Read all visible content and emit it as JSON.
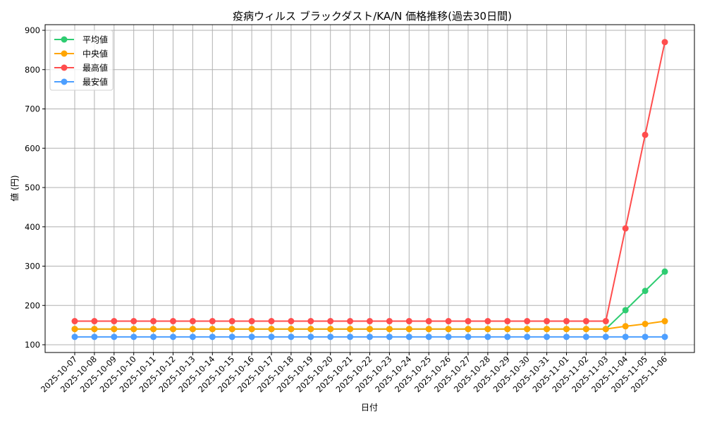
{
  "chart_data": {
    "type": "line",
    "title": "疫病ウィルス ブラックダスト/KA/N 価格推移(過去30日間)",
    "xlabel": "日付",
    "ylabel": "値 (円)",
    "ylim": [
      80,
      905
    ],
    "yticks": [
      100,
      200,
      300,
      400,
      500,
      600,
      700,
      800,
      900
    ],
    "grid": true,
    "legend_position": "upper left",
    "x": [
      "2025-10-07",
      "2025-10-08",
      "2025-10-09",
      "2025-10-10",
      "2025-10-11",
      "2025-10-12",
      "2025-10-13",
      "2025-10-14",
      "2025-10-15",
      "2025-10-16",
      "2025-10-17",
      "2025-10-18",
      "2025-10-19",
      "2025-10-20",
      "2025-10-21",
      "2025-10-22",
      "2025-10-23",
      "2025-10-24",
      "2025-10-25",
      "2025-10-26",
      "2025-10-27",
      "2025-10-28",
      "2025-10-29",
      "2025-10-30",
      "2025-10-31",
      "2025-11-01",
      "2025-11-02",
      "2025-11-03",
      "2025-11-04",
      "2025-11-05",
      "2025-11-06"
    ],
    "series": [
      {
        "name": "平均値",
        "color": "#2ecc71",
        "values": [
          140,
          140,
          140,
          140,
          140,
          140,
          140,
          140,
          140,
          140,
          140,
          140,
          140,
          140,
          140,
          140,
          140,
          140,
          140,
          140,
          140,
          140,
          140,
          140,
          140,
          140,
          140,
          140,
          188,
          237,
          286
        ]
      },
      {
        "name": "中央値",
        "color": "#ffa500",
        "values": [
          140,
          140,
          140,
          140,
          140,
          140,
          140,
          140,
          140,
          140,
          140,
          140,
          140,
          140,
          140,
          140,
          140,
          140,
          140,
          140,
          140,
          140,
          140,
          140,
          140,
          140,
          140,
          140,
          147,
          153,
          160
        ]
      },
      {
        "name": "最高値",
        "color": "#ff4d4d",
        "values": [
          160,
          160,
          160,
          160,
          160,
          160,
          160,
          160,
          160,
          160,
          160,
          160,
          160,
          160,
          160,
          160,
          160,
          160,
          160,
          160,
          160,
          160,
          160,
          160,
          160,
          160,
          160,
          160,
          396,
          634,
          870
        ]
      },
      {
        "name": "最安値",
        "color": "#4d9fff",
        "values": [
          120,
          120,
          120,
          120,
          120,
          120,
          120,
          120,
          120,
          120,
          120,
          120,
          120,
          120,
          120,
          120,
          120,
          120,
          120,
          120,
          120,
          120,
          120,
          120,
          120,
          120,
          120,
          120,
          120,
          120,
          120
        ]
      }
    ]
  }
}
